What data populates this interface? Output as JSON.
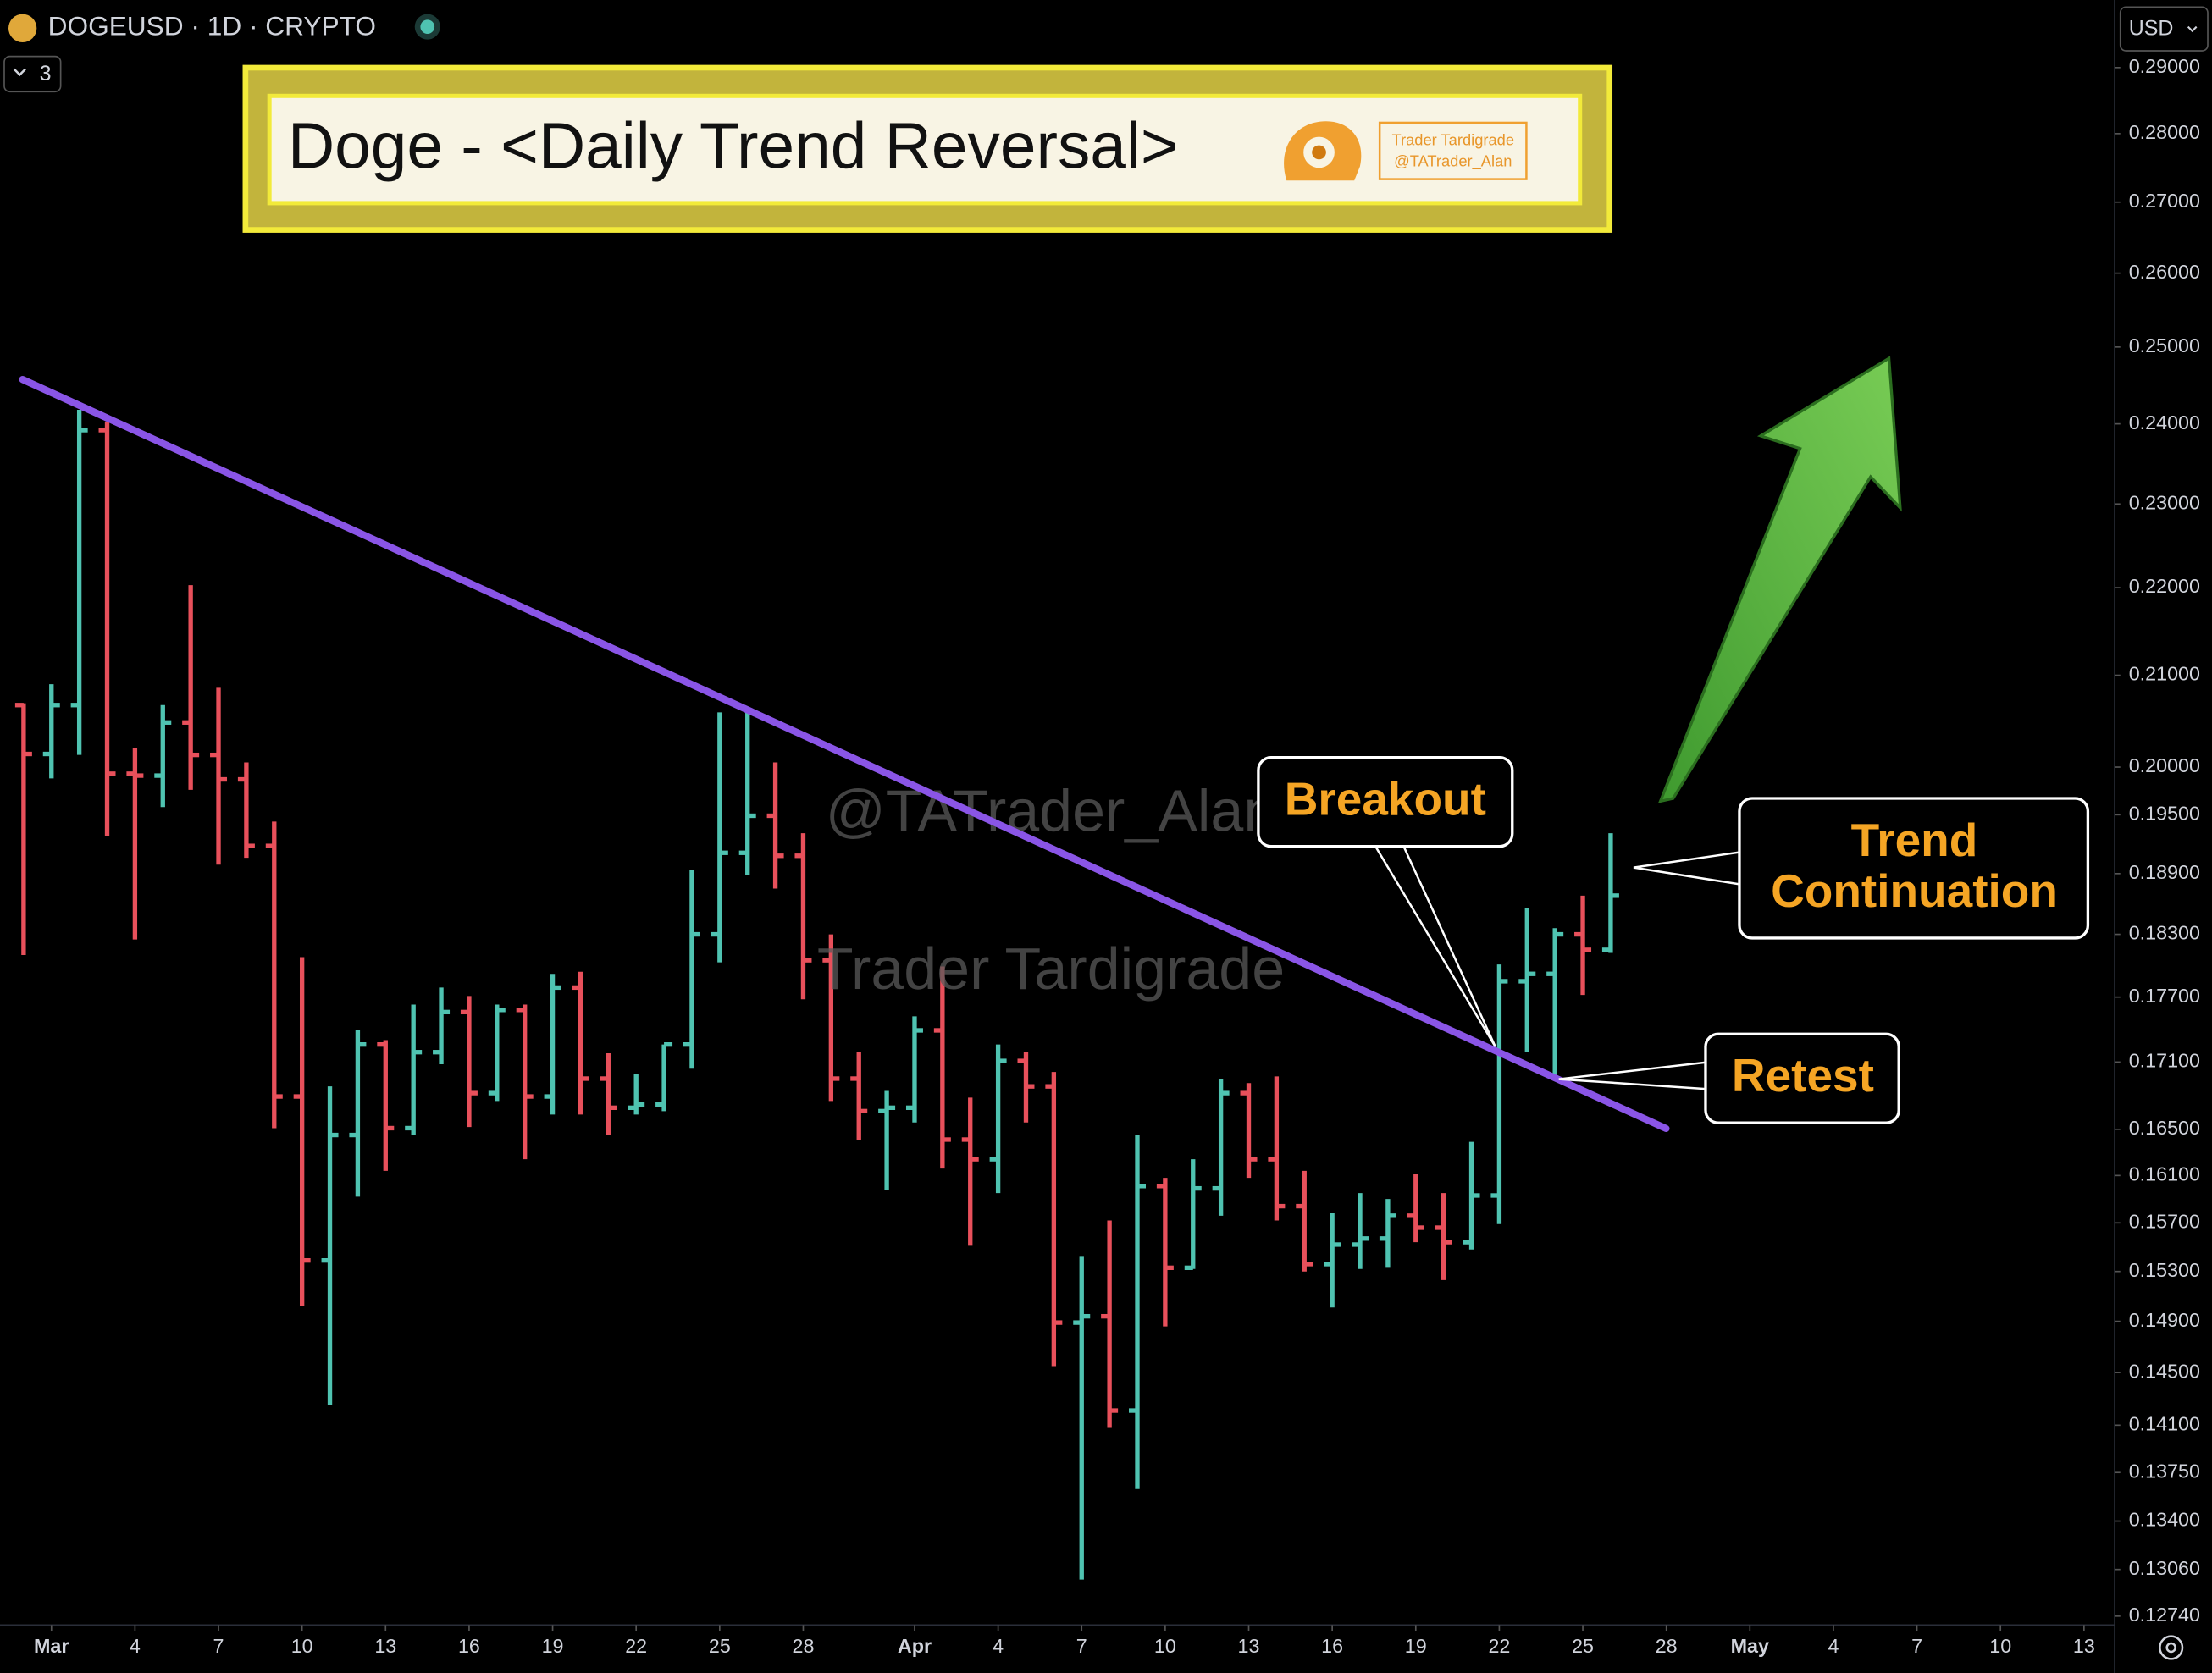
{
  "header": {
    "symbol": "DOGEUSD · 1D · CRYPTO",
    "collapse_count": 3,
    "currency": "USD"
  },
  "chart_data": {
    "type": "ohlc",
    "title": "Doge - <Daily Trend Reversal>",
    "badge": [
      "Trader Tardigrade",
      "@TATrader_Alan"
    ],
    "watermarks": [
      "@TATrader_Alan",
      "Trader Tardigrade"
    ],
    "annotations": {
      "breakout": "Breakout",
      "trend_continuation": [
        "Trend",
        "Continuation"
      ],
      "retest": "Retest"
    },
    "up_color": "#4fc3b1",
    "down_color": "#e8505b",
    "log_scale": true,
    "x": [
      "02-28",
      "03-01",
      "03-02",
      "03-03",
      "03-04",
      "03-05",
      "03-06",
      "03-07",
      "03-08",
      "03-09",
      "03-10",
      "03-11",
      "03-12",
      "03-13",
      "03-14",
      "03-15",
      "03-16",
      "03-17",
      "03-18",
      "03-19",
      "03-20",
      "03-21",
      "03-22",
      "03-23",
      "03-24",
      "03-25",
      "03-26",
      "03-27",
      "03-28",
      "03-29",
      "03-30",
      "03-31",
      "04-01",
      "04-02",
      "04-03",
      "04-04",
      "04-05",
      "04-06",
      "04-07",
      "04-08",
      "04-09",
      "04-10",
      "04-11",
      "04-12",
      "04-13",
      "04-14",
      "04-15",
      "04-16",
      "04-17",
      "04-18",
      "04-19",
      "04-20",
      "04-21",
      "04-22",
      "04-23",
      "04-24",
      "04-25",
      "04-26"
    ],
    "open": [
      0.2067,
      0.2014,
      0.2067,
      0.2392,
      0.1993,
      0.1991,
      0.2048,
      0.2013,
      0.1987,
      0.1918,
      0.1679,
      0.1539,
      0.1645,
      0.1726,
      0.1651,
      0.1719,
      0.1756,
      0.1682,
      0.1758,
      0.1679,
      0.1779,
      0.1695,
      0.1669,
      0.1672,
      0.1726,
      0.183,
      0.1911,
      0.1949,
      0.1908,
      0.1805,
      0.1695,
      0.1666,
      0.1669,
      0.1739,
      0.1641,
      0.1624,
      0.1711,
      0.1688,
      0.1489,
      0.1494,
      0.1421,
      0.1601,
      0.1533,
      0.1599,
      0.1682,
      0.1624,
      0.1584,
      0.1536,
      0.1552,
      0.1557,
      0.1576,
      0.1566,
      0.1554,
      0.1593,
      0.1785,
      0.1792,
      0.183,
      0.1815
    ],
    "high": [
      0.2069,
      0.209,
      0.2418,
      0.2403,
      0.202,
      0.2067,
      0.2203,
      0.2086,
      0.2005,
      0.1943,
      0.1808,
      0.1688,
      0.1739,
      0.173,
      0.1763,
      0.1779,
      0.1771,
      0.1763,
      0.1763,
      0.1792,
      0.1794,
      0.1718,
      0.1699,
      0.1726,
      0.1894,
      0.2059,
      0.2062,
      0.2005,
      0.1931,
      0.183,
      0.1719,
      0.1684,
      0.1752,
      0.1799,
      0.1678,
      0.1726,
      0.1719,
      0.1701,
      0.1542,
      0.1572,
      0.1645,
      0.1608,
      0.1624,
      0.1695,
      0.1691,
      0.1697,
      0.1614,
      0.1578,
      0.1595,
      0.159,
      0.1611,
      0.1595,
      0.1639,
      0.1801,
      0.1856,
      0.1836,
      0.1868,
      0.1931
    ],
    "low": [
      0.181,
      0.1988,
      0.2013,
      0.1928,
      0.1825,
      0.1958,
      0.1976,
      0.1899,
      0.1906,
      0.1651,
      0.1502,
      0.1425,
      0.1592,
      0.1614,
      0.1645,
      0.1708,
      0.1652,
      0.1675,
      0.1624,
      0.1663,
      0.1663,
      0.1645,
      0.1663,
      0.1666,
      0.1704,
      0.1803,
      0.1889,
      0.1875,
      0.1768,
      0.1675,
      0.1641,
      0.1598,
      0.1656,
      0.1616,
      0.1551,
      0.1595,
      0.1656,
      0.1455,
      0.1299,
      0.1408,
      0.1363,
      0.1486,
      0.1532,
      0.1576,
      0.1608,
      0.1572,
      0.153,
      0.1501,
      0.1532,
      0.1533,
      0.1554,
      0.1523,
      0.1548,
      0.1569,
      0.1719,
      0.1695,
      0.1772,
      0.1812
    ],
    "close": [
      0.2014,
      0.2067,
      0.2392,
      0.1993,
      0.1991,
      0.2048,
      0.2013,
      0.1987,
      0.1918,
      0.1679,
      0.1539,
      0.1645,
      0.1726,
      0.1651,
      0.1719,
      0.1756,
      0.1682,
      0.1758,
      0.1679,
      0.1779,
      0.1695,
      0.1669,
      0.1672,
      0.1726,
      0.183,
      0.1911,
      0.1949,
      0.1908,
      0.1805,
      0.1695,
      0.1666,
      0.1669,
      0.1739,
      0.1641,
      0.1624,
      0.1711,
      0.1688,
      0.1489,
      0.1494,
      0.1421,
      0.1601,
      0.1533,
      0.1599,
      0.1682,
      0.1624,
      0.1584,
      0.1536,
      0.1552,
      0.1557,
      0.1576,
      0.1566,
      0.1554,
      0.1593,
      0.1785,
      0.1792,
      0.183,
      0.1815,
      0.1868
    ],
    "xlim": [
      "02-27",
      "05-14"
    ],
    "xticks": [
      {
        "value": "03-01",
        "label": "Mar"
      },
      {
        "value": "03-04",
        "label": "4"
      },
      {
        "value": "03-07",
        "label": "7"
      },
      {
        "value": "03-10",
        "label": "10"
      },
      {
        "value": "03-13",
        "label": "13"
      },
      {
        "value": "03-16",
        "label": "16"
      },
      {
        "value": "03-19",
        "label": "19"
      },
      {
        "value": "03-22",
        "label": "22"
      },
      {
        "value": "03-25",
        "label": "25"
      },
      {
        "value": "03-28",
        "label": "28"
      },
      {
        "value": "04-01",
        "label": "Apr"
      },
      {
        "value": "04-04",
        "label": "4"
      },
      {
        "value": "04-07",
        "label": "7"
      },
      {
        "value": "04-10",
        "label": "10"
      },
      {
        "value": "04-13",
        "label": "13"
      },
      {
        "value": "04-16",
        "label": "16"
      },
      {
        "value": "04-19",
        "label": "19"
      },
      {
        "value": "04-22",
        "label": "22"
      },
      {
        "value": "04-25",
        "label": "25"
      },
      {
        "value": "04-28",
        "label": "28"
      },
      {
        "value": "05-01",
        "label": "May"
      },
      {
        "value": "05-04",
        "label": "4"
      },
      {
        "value": "05-07",
        "label": "7"
      },
      {
        "value": "05-10",
        "label": "10"
      },
      {
        "value": "05-13",
        "label": "13"
      }
    ],
    "ylim": [
      0.1268,
      0.3006
    ],
    "yticks": [
      {
        "value": 0.29,
        "label": "0.29000"
      },
      {
        "value": 0.28,
        "label": "0.28000"
      },
      {
        "value": 0.27,
        "label": "0.27000"
      },
      {
        "value": 0.26,
        "label": "0.26000"
      },
      {
        "value": 0.25,
        "label": "0.25000"
      },
      {
        "value": 0.24,
        "label": "0.24000"
      },
      {
        "value": 0.23,
        "label": "0.23000"
      },
      {
        "value": 0.22,
        "label": "0.22000"
      },
      {
        "value": 0.21,
        "label": "0.21000"
      },
      {
        "value": 0.2,
        "label": "0.20000"
      },
      {
        "value": 0.195,
        "label": "0.19500"
      },
      {
        "value": 0.189,
        "label": "0.18900"
      },
      {
        "value": 0.183,
        "label": "0.18300"
      },
      {
        "value": 0.177,
        "label": "0.17700"
      },
      {
        "value": 0.171,
        "label": "0.17100"
      },
      {
        "value": 0.165,
        "label": "0.16500"
      },
      {
        "value": 0.161,
        "label": "0.16100"
      },
      {
        "value": 0.157,
        "label": "0.15700"
      },
      {
        "value": 0.153,
        "label": "0.15300"
      },
      {
        "value": 0.149,
        "label": "0.14900"
      },
      {
        "value": 0.145,
        "label": "0.14500"
      },
      {
        "value": 0.141,
        "label": "0.14100"
      },
      {
        "value": 0.1375,
        "label": "0.13750"
      },
      {
        "value": 0.134,
        "label": "0.13400"
      },
      {
        "value": 0.1306,
        "label": "0.13060"
      },
      {
        "value": 0.1274,
        "label": "0.12740"
      }
    ]
  }
}
